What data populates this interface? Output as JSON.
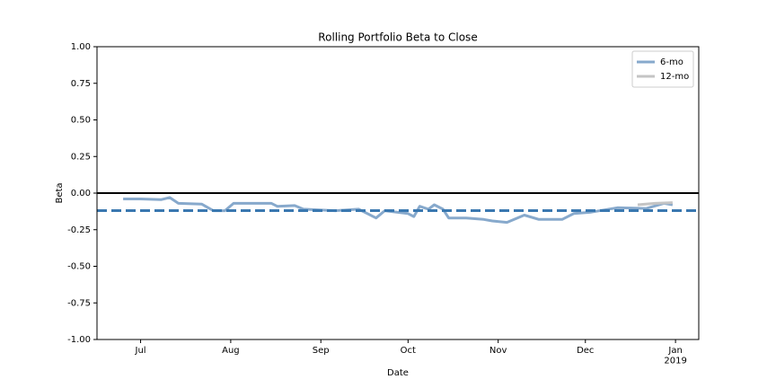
{
  "chart_data": {
    "type": "line",
    "title": "Rolling Portfolio Beta to Close",
    "x_label": "Date",
    "y_label": "Beta",
    "xlim": [
      "2018-06-16",
      "2019-01-09"
    ],
    "xticks": [
      {
        "value": "2018-07-01",
        "label": "Jul"
      },
      {
        "value": "2018-08-01",
        "label": "Aug"
      },
      {
        "value": "2018-09-01",
        "label": "Sep"
      },
      {
        "value": "2018-10-01",
        "label": "Oct"
      },
      {
        "value": "2018-11-01",
        "label": "Nov"
      },
      {
        "value": "2018-12-01",
        "label": "Dec"
      },
      {
        "value": "2019-01-01",
        "label": "Jan\n2019"
      }
    ],
    "ylim": [
      -1,
      1
    ],
    "yticks": [
      {
        "value": -1,
        "label": "-1.00"
      },
      {
        "value": -0.75,
        "label": "-0.75"
      },
      {
        "value": -0.5,
        "label": "-0.50"
      },
      {
        "value": -0.25,
        "label": "-0.25"
      },
      {
        "value": 0,
        "label": "0.00"
      },
      {
        "value": 0.25,
        "label": "0.25"
      },
      {
        "value": 0.5,
        "label": "0.50"
      },
      {
        "value": 0.75,
        "label": "0.75"
      },
      {
        "value": 1,
        "label": "1.00"
      }
    ],
    "legend": "upper right",
    "reference_lines": [
      {
        "value": 0,
        "color": "#000000",
        "style": "solid"
      },
      {
        "value": -0.12,
        "color": "#3a78b0",
        "style": "dashed"
      }
    ],
    "series": [
      {
        "name": "6-mo",
        "color": "#87a9cc",
        "x": [
          "2018-06-25",
          "2018-07-01",
          "2018-07-08",
          "2018-07-11",
          "2018-07-14",
          "2018-07-22",
          "2018-07-26",
          "2018-07-30",
          "2018-08-02",
          "2018-08-09",
          "2018-08-15",
          "2018-08-17",
          "2018-08-23",
          "2018-08-26",
          "2018-09-06",
          "2018-09-14",
          "2018-09-20",
          "2018-09-23",
          "2018-10-01",
          "2018-10-03",
          "2018-10-05",
          "2018-10-08",
          "2018-10-10",
          "2018-10-13",
          "2018-10-15",
          "2018-10-21",
          "2018-10-27",
          "2018-10-30",
          "2018-11-04",
          "2018-11-10",
          "2018-11-15",
          "2018-11-23",
          "2018-11-27",
          "2018-12-03",
          "2018-12-12",
          "2018-12-22",
          "2018-12-28",
          "2018-12-31"
        ],
        "values": [
          -0.04,
          -0.04,
          -0.045,
          -0.03,
          -0.07,
          -0.075,
          -0.12,
          -0.12,
          -0.07,
          -0.07,
          -0.07,
          -0.09,
          -0.085,
          -0.11,
          -0.12,
          -0.11,
          -0.17,
          -0.12,
          -0.14,
          -0.16,
          -0.09,
          -0.11,
          -0.08,
          -0.11,
          -0.17,
          -0.17,
          -0.18,
          -0.19,
          -0.2,
          -0.15,
          -0.18,
          -0.18,
          -0.14,
          -0.13,
          -0.1,
          -0.105,
          -0.07,
          -0.08
        ]
      },
      {
        "name": "12-mo",
        "color": "#c4c4c4",
        "x": [
          "2018-12-19",
          "2018-12-25",
          "2018-12-31"
        ],
        "values": [
          -0.08,
          -0.07,
          -0.065
        ]
      }
    ]
  }
}
